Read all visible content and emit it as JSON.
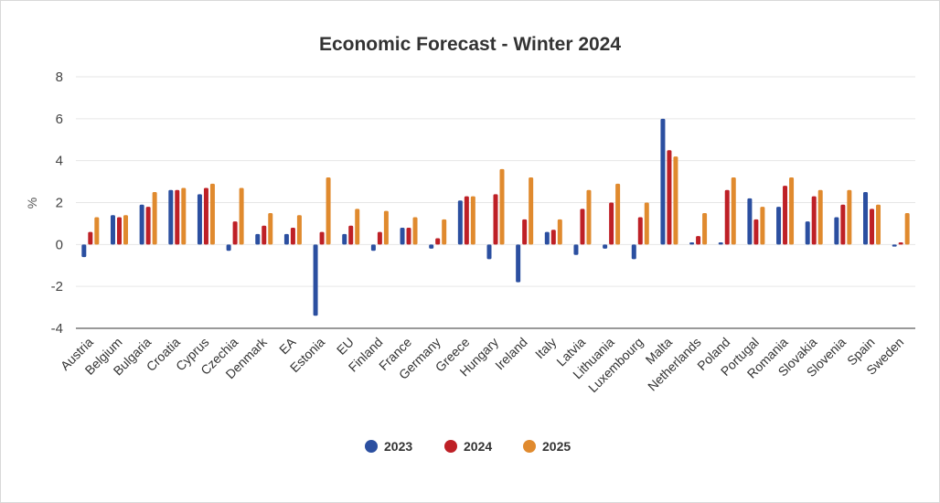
{
  "chart_data": {
    "type": "bar",
    "title": "Economic Forecast - Winter 2024",
    "ylabel": "%",
    "xlabel": "",
    "ylim": [
      -4,
      8
    ],
    "yticks": [
      -4,
      -2,
      0,
      2,
      4,
      6,
      8
    ],
    "ytick_labels": [
      "-4",
      "-2",
      "0",
      "2",
      "4",
      "6",
      "8"
    ],
    "grid": true,
    "legend_position": "bottom",
    "categories": [
      "Austria",
      "Belgium",
      "Bulgaria",
      "Croatia",
      "Cyprus",
      "Czechia",
      "Denmark",
      "EA",
      "Estonia",
      "EU",
      "Finland",
      "France",
      "Germany",
      "Greece",
      "Hungary",
      "Ireland",
      "Italy",
      "Latvia",
      "Lithuania",
      "Luxembourg",
      "Malta",
      "Netherlands",
      "Poland",
      "Portugal",
      "Romania",
      "Slovakia",
      "Slovenia",
      "Spain",
      "Sweden"
    ],
    "series": [
      {
        "name": "2023",
        "color": "#2b4fa0",
        "values": [
          -0.6,
          1.4,
          1.9,
          2.6,
          2.4,
          -0.3,
          0.5,
          0.5,
          -3.4,
          0.5,
          -0.3,
          0.8,
          -0.2,
          2.1,
          -0.7,
          -1.8,
          0.6,
          -0.5,
          -0.2,
          -0.7,
          6.0,
          0.1,
          0.1,
          2.2,
          1.8,
          1.1,
          1.3,
          2.5,
          -0.1
        ]
      },
      {
        "name": "2024",
        "color": "#be2026",
        "values": [
          0.6,
          1.3,
          1.8,
          2.6,
          2.7,
          1.1,
          0.9,
          0.8,
          0.6,
          0.9,
          0.6,
          0.8,
          0.3,
          2.3,
          2.4,
          1.2,
          0.7,
          1.7,
          2.0,
          1.3,
          4.5,
          0.4,
          2.6,
          1.2,
          2.8,
          2.3,
          1.9,
          1.7,
          0.1
        ]
      },
      {
        "name": "2025",
        "color": "#e08a2e",
        "values": [
          1.3,
          1.4,
          2.5,
          2.7,
          2.9,
          2.7,
          1.5,
          1.4,
          3.2,
          1.7,
          1.6,
          1.3,
          1.2,
          2.3,
          3.6,
          3.2,
          1.2,
          2.6,
          2.9,
          2.0,
          4.2,
          1.5,
          3.2,
          1.8,
          3.2,
          2.6,
          2.6,
          1.9,
          1.5
        ]
      }
    ]
  }
}
